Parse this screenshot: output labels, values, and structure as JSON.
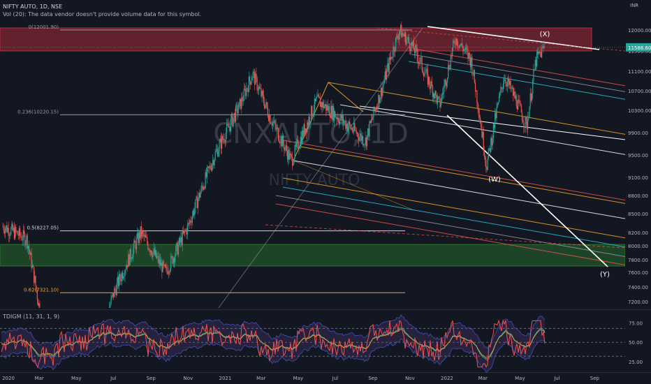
{
  "header": {
    "symbol_line": "NIFTY AUTO, 1D, NSE",
    "volume_note": "Vol (20): The data vendor doesn't provide volume data for this symbol."
  },
  "watermark": {
    "symbol": "CNXAUTO, 1D",
    "name": "NIFTY AUTO"
  },
  "chart_data": [
    {
      "type": "candlestick",
      "currency": "INR",
      "last_price": 11586.6,
      "price_ticks": [
        12000,
        11500,
        11100,
        10700,
        10300,
        9900,
        9500,
        9100,
        8800,
        8500,
        8200,
        8000,
        7800,
        7600,
        7400,
        7200
      ],
      "date_ticks": [
        "2020",
        "Mar",
        "May",
        "Jul",
        "Sep",
        "Nov",
        "2021",
        "Mar",
        "May",
        "Jul",
        "Sep",
        "Nov",
        "2022",
        "Mar",
        "May",
        "Jul",
        "Sep"
      ],
      "fib_levels": [
        {
          "label": "0(12001.90)",
          "value": 12001.9
        },
        {
          "label": "0.236(10220.15)",
          "value": 10220.15
        },
        {
          "label": "0.5(8227.05)",
          "value": 8227.05
        },
        {
          "label": "0.62(7321.10)",
          "value": 7321.1
        }
      ],
      "zones": [
        {
          "name": "supply",
          "from": 11500,
          "to": 12050,
          "color": "#c2303c"
        },
        {
          "name": "demand",
          "from": 7700,
          "to": 8020,
          "color": "#2d7d2e"
        }
      ],
      "wave_labels": [
        "(X)",
        "(W)",
        "(Y)"
      ],
      "price_path": [
        {
          "date": "2020-01-01",
          "close": 8300
        },
        {
          "date": "2020-02-10",
          "close": 8100
        },
        {
          "date": "2020-03-24",
          "close": 6000
        },
        {
          "date": "2020-05-15",
          "close": 6100
        },
        {
          "date": "2020-07-01",
          "close": 7300
        },
        {
          "date": "2020-08-15",
          "close": 8200
        },
        {
          "date": "2020-09-25",
          "close": 7600
        },
        {
          "date": "2020-11-01",
          "close": 8300
        },
        {
          "date": "2020-12-15",
          "close": 9500
        },
        {
          "date": "2021-01-25",
          "close": 10400
        },
        {
          "date": "2021-02-15",
          "close": 11050
        },
        {
          "date": "2021-03-15",
          "close": 10200
        },
        {
          "date": "2021-04-20",
          "close": 9400
        },
        {
          "date": "2021-06-01",
          "close": 10500
        },
        {
          "date": "2021-07-15",
          "close": 10100
        },
        {
          "date": "2021-08-20",
          "close": 9750
        },
        {
          "date": "2021-09-15",
          "close": 10700
        },
        {
          "date": "2021-10-15",
          "close": 12000
        },
        {
          "date": "2021-11-10",
          "close": 11500
        },
        {
          "date": "2021-12-20",
          "close": 10400
        },
        {
          "date": "2022-01-15",
          "close": 11800
        },
        {
          "date": "2022-02-10",
          "close": 11300
        },
        {
          "date": "2022-03-07",
          "close": 9300
        },
        {
          "date": "2022-04-05",
          "close": 11000
        },
        {
          "date": "2022-04-25",
          "close": 10500
        },
        {
          "date": "2022-05-12",
          "close": 10000
        },
        {
          "date": "2022-05-27",
          "close": 11300
        },
        {
          "date": "2022-06-10",
          "close": 11586.6
        }
      ]
    },
    {
      "type": "line",
      "title": "TDIGM (11, 31, 1, 9)",
      "y_ticks": [
        75,
        50,
        25
      ],
      "levels": [
        68,
        50,
        32
      ]
    }
  ],
  "colors": {
    "background": "#131722",
    "up": "#26a69a",
    "down": "#ef5350",
    "text": "#b2b5be",
    "last_price_badge": "#26a69a"
  }
}
